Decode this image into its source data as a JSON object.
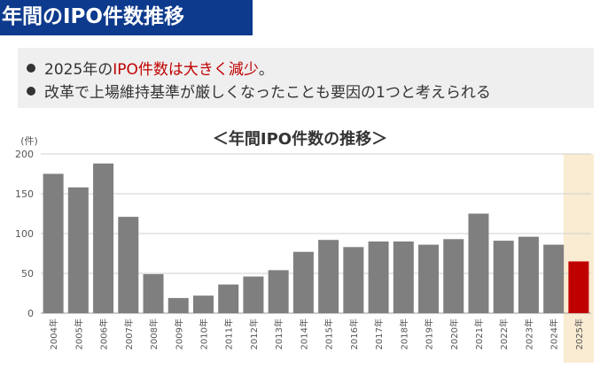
{
  "header": {
    "title": "年間のIPO件数推移"
  },
  "bullets": [
    {
      "prefix": "2025年の",
      "highlight": "IPO件数は大きく減少",
      "suffix": "。"
    },
    {
      "prefix": "改革で上場維持基準が厳しくなったことも要因の1つと考えられる",
      "highlight": "",
      "suffix": ""
    }
  ],
  "colors": {
    "bar": "#7f7f7f",
    "highlight_bar": "#c00000",
    "highlight_band": "#faecd2",
    "header": "#0d3a8c"
  },
  "chart_data": {
    "type": "bar",
    "title": "＜年間IPO件数の推移＞",
    "ylabel": "(件)",
    "xlabel": "",
    "ylim": [
      0,
      200
    ],
    "yticks": [
      0,
      50,
      100,
      150,
      200
    ],
    "grid": true,
    "categories": [
      "2004年",
      "2005年",
      "2006年",
      "2007年",
      "2008年",
      "2009年",
      "2010年",
      "2011年",
      "2012年",
      "2013年",
      "2014年",
      "2015年",
      "2016年",
      "2017年",
      "2018年",
      "2019年",
      "2020年",
      "2021年",
      "2022年",
      "2023年",
      "2024年",
      "2025年"
    ],
    "values": [
      175,
      158,
      188,
      121,
      49,
      19,
      22,
      36,
      46,
      54,
      77,
      92,
      83,
      90,
      90,
      86,
      93,
      125,
      91,
      96,
      86,
      65
    ],
    "highlight_category": "2025年"
  }
}
